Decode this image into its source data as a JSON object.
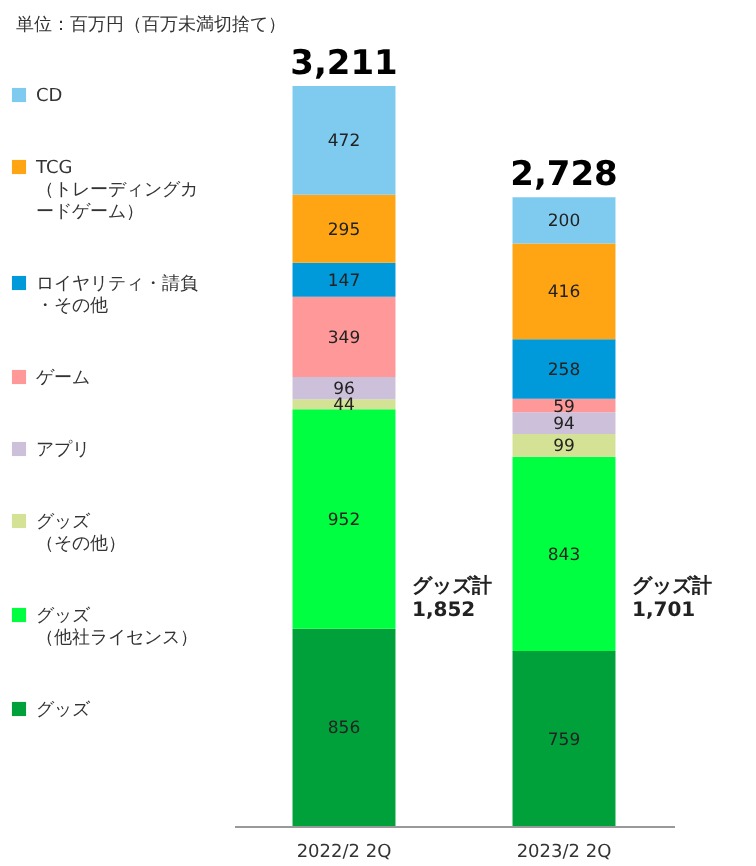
{
  "chart_data": {
    "type": "bar",
    "stacked": true,
    "categories": [
      "2022/2 2Q",
      "2023/2 2Q"
    ],
    "series": [
      {
        "name": "グッズ",
        "color": "#00a13a",
        "values": [
          856,
          759
        ]
      },
      {
        "name": "グッズ（他社ライセンス）",
        "color": "#00ff40",
        "values": [
          952,
          843
        ]
      },
      {
        "name": "グッズ（その他）",
        "color": "#d3e294",
        "values": [
          44,
          99
        ]
      },
      {
        "name": "アプリ",
        "color": "#ccc0da",
        "values": [
          96,
          94
        ]
      },
      {
        "name": "ゲーム",
        "color": "#ff9999",
        "values": [
          349,
          59
        ]
      },
      {
        "name": "ロイヤリティ・請負・その他",
        "color": "#0099d9",
        "values": [
          147,
          258
        ]
      },
      {
        "name": "TCG（トレーディングカードゲーム）",
        "color": "#ffa514",
        "values": [
          295,
          416
        ]
      },
      {
        "name": "CD",
        "color": "#7fcbf0",
        "values": [
          472,
          200
        ]
      }
    ],
    "data_labels": true,
    "totals": [
      "3,211",
      "2,728"
    ],
    "legend": "left",
    "annotations": [
      "単位：百万円（百万未満切捨て）",
      "グッズ計 1,852",
      "グッズ計 1,701"
    ]
  }
}
